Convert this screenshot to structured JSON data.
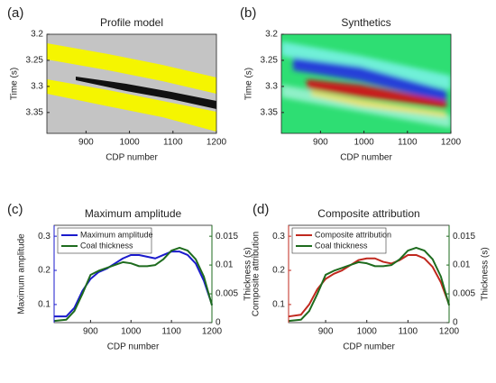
{
  "chart_data": [
    {
      "type": "image",
      "label": "(a)",
      "title": "Profile model",
      "xlabel": "CDP number",
      "ylabel": "Time (s)",
      "xlim": [
        810,
        1200
      ],
      "xticks": [
        900,
        1000,
        1100,
        1200
      ],
      "ylim": [
        3.2,
        3.39
      ],
      "yticks": [
        3.2,
        3.25,
        3.3,
        3.35
      ],
      "y_inverted": true
    },
    {
      "type": "image",
      "label": "(b)",
      "title": "Synthetics",
      "xlabel": "CDP number",
      "ylabel": "Time (s)",
      "xlim": [
        810,
        1200
      ],
      "xticks": [
        900,
        1000,
        1100,
        1200
      ],
      "ylim": [
        3.2,
        3.39
      ],
      "yticks": [
        3.2,
        3.25,
        3.3,
        3.35
      ],
      "y_inverted": true
    },
    {
      "type": "line",
      "label": "(c)",
      "title": "Maximum amplitude",
      "xlabel": "CDP number",
      "ylabel": "Maximum amplitude",
      "y2label": "Thickness (s)",
      "xlim": [
        810,
        1200
      ],
      "xticks": [
        900,
        1000,
        1100,
        1200
      ],
      "ylim": [
        0.047,
        0.332
      ],
      "yticks": [
        0.1,
        0.2,
        0.3
      ],
      "y2lim": [
        0,
        0.0169
      ],
      "y2ticks": [
        0,
        0.005,
        0.01,
        0.015
      ],
      "legend": "upper left",
      "x": [
        810,
        840,
        860,
        880,
        900,
        920,
        940,
        960,
        980,
        1000,
        1020,
        1040,
        1060,
        1080,
        1100,
        1120,
        1140,
        1160,
        1180,
        1200
      ],
      "series": [
        {
          "name": "Maximum amplitude",
          "color": "#1a1acc",
          "values": [
            0.065,
            0.065,
            0.09,
            0.14,
            0.175,
            0.195,
            0.205,
            0.22,
            0.235,
            0.245,
            0.245,
            0.24,
            0.235,
            0.245,
            0.255,
            0.255,
            0.245,
            0.22,
            0.17,
            0.1
          ]
        },
        {
          "name": "Coal thickness",
          "color": "#1e6b1e",
          "axis": "y2",
          "values": [
            0.0003,
            0.0005,
            0.002,
            0.005,
            0.0083,
            0.009,
            0.0095,
            0.01,
            0.0105,
            0.0103,
            0.0098,
            0.0098,
            0.01,
            0.011,
            0.0125,
            0.013,
            0.0125,
            0.011,
            0.008,
            0.003
          ]
        }
      ]
    },
    {
      "type": "line",
      "label": "(d)",
      "title": "Composite attribution",
      "xlabel": "CDP number",
      "ylabel": "Composite attribution",
      "y2label": "Thickness (s)",
      "xlim": [
        810,
        1200
      ],
      "xticks": [
        900,
        1000,
        1100,
        1200
      ],
      "ylim": [
        0.047,
        0.332
      ],
      "yticks": [
        0.1,
        0.2,
        0.3
      ],
      "y2lim": [
        0,
        0.0169
      ],
      "y2ticks": [
        0,
        0.005,
        0.01,
        0.015
      ],
      "legend": "upper left",
      "x": [
        810,
        840,
        860,
        880,
        900,
        920,
        940,
        960,
        980,
        1000,
        1020,
        1040,
        1060,
        1080,
        1100,
        1120,
        1140,
        1160,
        1180,
        1200
      ],
      "series": [
        {
          "name": "Composite attribution",
          "color": "#c0281e",
          "values": [
            0.065,
            0.07,
            0.1,
            0.145,
            0.175,
            0.19,
            0.2,
            0.215,
            0.23,
            0.235,
            0.235,
            0.225,
            0.22,
            0.23,
            0.245,
            0.245,
            0.235,
            0.21,
            0.165,
            0.1
          ]
        },
        {
          "name": "Coal thickness",
          "color": "#1e6b1e",
          "axis": "y2",
          "values": [
            0.0003,
            0.0005,
            0.002,
            0.005,
            0.0083,
            0.009,
            0.0095,
            0.01,
            0.0105,
            0.0103,
            0.0098,
            0.0098,
            0.01,
            0.011,
            0.0125,
            0.013,
            0.0125,
            0.011,
            0.008,
            0.003
          ]
        }
      ]
    }
  ]
}
